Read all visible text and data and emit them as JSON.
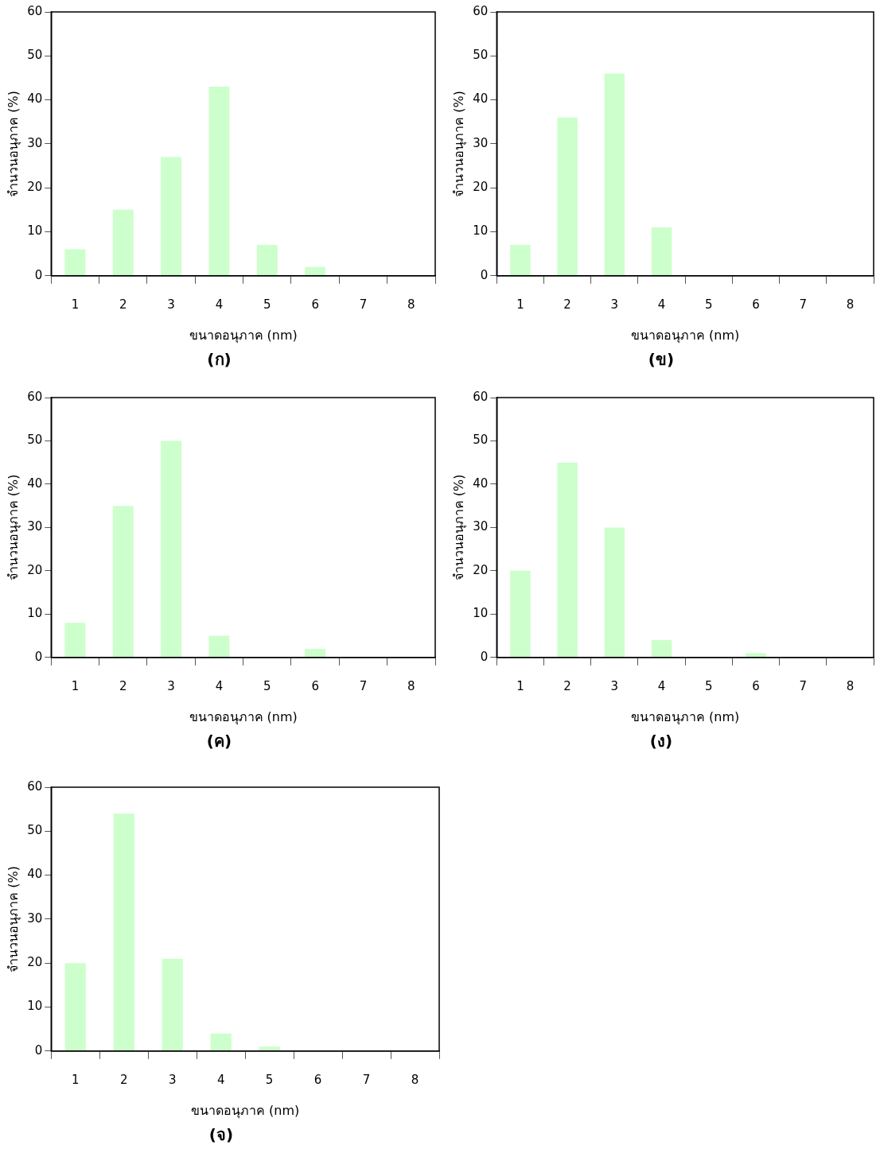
{
  "chart_data": [
    {
      "type": "bar",
      "title": "(ก)",
      "xlabel": "ขนาดอนุภาค (nm)",
      "ylabel": "จำนวนอนุภาค (%)",
      "categories": [
        "1",
        "2",
        "3",
        "4",
        "5",
        "6",
        "7",
        "8"
      ],
      "values": [
        6,
        15,
        27,
        43,
        7,
        2,
        0,
        0
      ],
      "color": "#ccffcc",
      "ylim": [
        0,
        60
      ],
      "yticks": [
        0,
        10,
        20,
        30,
        40,
        50,
        60
      ]
    },
    {
      "type": "bar",
      "title": "(ข)",
      "xlabel": "ขนาดอนุภาค (nm)",
      "ylabel": "จำนวนอนุภาค (%)",
      "categories": [
        "1",
        "2",
        "3",
        "4",
        "5",
        "6",
        "7",
        "8"
      ],
      "values": [
        7,
        36,
        46,
        11,
        0,
        0,
        0,
        0
      ],
      "color": "#ccffcc",
      "ylim": [
        0,
        60
      ],
      "yticks": [
        0,
        10,
        20,
        30,
        40,
        50,
        60
      ]
    },
    {
      "type": "bar",
      "title": "(ค)",
      "xlabel": "ขนาดอนุภาค (nm)",
      "ylabel": "จำนวนอนุภาค (%)",
      "categories": [
        "1",
        "2",
        "3",
        "4",
        "5",
        "6",
        "7",
        "8"
      ],
      "values": [
        8,
        35,
        50,
        5,
        0,
        2,
        0,
        0
      ],
      "color": "#ccffcc",
      "ylim": [
        0,
        60
      ],
      "yticks": [
        0,
        10,
        20,
        30,
        40,
        50,
        60
      ]
    },
    {
      "type": "bar",
      "title": "(ง)",
      "xlabel": "ขนาดอนุภาค (nm)",
      "ylabel": "จำนวนอนุภาค (%)",
      "categories": [
        "1",
        "2",
        "3",
        "4",
        "5",
        "6",
        "7",
        "8"
      ],
      "values": [
        20,
        45,
        30,
        4,
        0,
        1,
        0,
        0
      ],
      "color": "#ccffcc",
      "ylim": [
        0,
        60
      ],
      "yticks": [
        0,
        10,
        20,
        30,
        40,
        50,
        60
      ]
    },
    {
      "type": "bar",
      "title": "(จ)",
      "xlabel": "ขนาดอนุภาค (nm)",
      "ylabel": "จำนวนอนุภาค (%)",
      "categories": [
        "1",
        "2",
        "3",
        "4",
        "5",
        "6",
        "7",
        "8"
      ],
      "values": [
        20,
        54,
        21,
        4,
        1,
        0,
        0,
        0
      ],
      "color": "#ccffcc",
      "ylim": [
        0,
        60
      ],
      "yticks": [
        0,
        10,
        20,
        30,
        40,
        50,
        60
      ]
    }
  ]
}
